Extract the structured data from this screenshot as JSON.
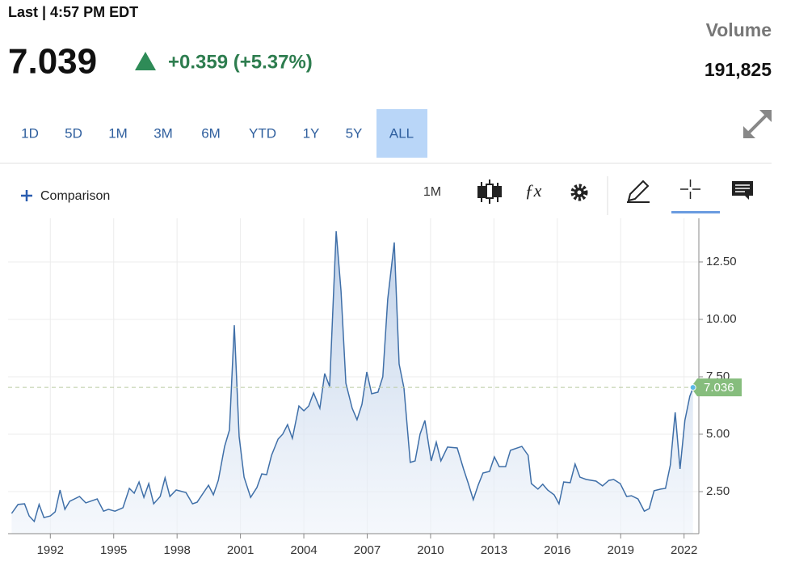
{
  "header": {
    "last_label": "Last | 4:57 PM EDT",
    "price": "7.039",
    "change": "+0.359 (+5.37%)",
    "volume_label": "Volume",
    "volume": "191,825"
  },
  "ranges": [
    "1D",
    "5D",
    "1M",
    "3M",
    "6M",
    "YTD",
    "1Y",
    "5Y",
    "ALL"
  ],
  "active_range": "ALL",
  "toolbar": {
    "comparison": "Comparison",
    "interval": "1M"
  },
  "chart_data": {
    "type": "area",
    "color": "#3f6fa8",
    "x": [
      1990.17,
      1990.47,
      1990.78,
      1991.0,
      1991.24,
      1991.47,
      1991.7,
      1992.0,
      1992.23,
      1992.46,
      1992.69,
      1992.92,
      1993.38,
      1993.68,
      1994.22,
      1994.52,
      1994.75,
      1995.06,
      1995.44,
      1995.74,
      1995.97,
      1996.2,
      1996.43,
      1996.66,
      1996.89,
      1997.2,
      1997.43,
      1997.66,
      1997.96,
      1998.42,
      1998.73,
      1998.95,
      1999.49,
      1999.72,
      1999.95,
      2000.25,
      2000.48,
      2000.71,
      2000.94,
      2001.17,
      2001.48,
      2001.78,
      2002.01,
      2002.24,
      2002.47,
      2002.78,
      2003.0,
      2003.23,
      2003.46,
      2003.77,
      2004.0,
      2004.23,
      2004.46,
      2004.76,
      2004.99,
      2005.22,
      2005.53,
      2005.76,
      2005.99,
      2006.29,
      2006.52,
      2006.75,
      2006.98,
      2007.21,
      2007.51,
      2007.74,
      2007.97,
      2008.28,
      2008.51,
      2008.74,
      2009.04,
      2009.27,
      2009.5,
      2009.73,
      2010.03,
      2010.27,
      2010.49,
      2010.8,
      2011.26,
      2011.56,
      2011.79,
      2012.02,
      2012.25,
      2012.48,
      2012.79,
      2013.02,
      2013.25,
      2013.55,
      2013.78,
      2014.32,
      2014.62,
      2014.77,
      2015.08,
      2015.31,
      2015.54,
      2015.85,
      2016.08,
      2016.3,
      2016.61,
      2016.84,
      2017.07,
      2017.37,
      2017.83,
      2018.14,
      2018.44,
      2018.67,
      2018.98,
      2019.28,
      2019.51,
      2019.82,
      2020.12,
      2020.35,
      2020.58,
      2020.89,
      2021.12,
      2021.35,
      2021.58,
      2021.81,
      2022.04,
      2022.27,
      2022.42
    ],
    "values": [
      1.55,
      1.94,
      1.97,
      1.44,
      1.2,
      1.94,
      1.37,
      1.44,
      1.62,
      2.57,
      1.73,
      2.08,
      2.29,
      2.01,
      2.18,
      1.65,
      1.73,
      1.65,
      1.8,
      2.64,
      2.43,
      2.92,
      2.25,
      2.85,
      1.97,
      2.29,
      3.1,
      2.29,
      2.57,
      2.46,
      1.97,
      2.04,
      2.78,
      2.36,
      2.99,
      4.47,
      5.18,
      9.75,
      4.89,
      3.13,
      2.25,
      2.68,
      3.27,
      3.24,
      4.08,
      4.79,
      5.0,
      5.42,
      4.82,
      6.23,
      6.02,
      6.23,
      6.8,
      6.13,
      7.64,
      7.08,
      13.84,
      11.23,
      7.22,
      6.13,
      5.63,
      6.3,
      7.71,
      6.76,
      6.83,
      7.5,
      10.88,
      13.35,
      8.06,
      7.01,
      3.77,
      3.84,
      5.0,
      5.6,
      3.84,
      4.65,
      3.84,
      4.44,
      4.4,
      3.49,
      2.85,
      2.15,
      2.78,
      3.31,
      3.38,
      4.01,
      3.59,
      3.59,
      4.3,
      4.47,
      4.08,
      2.85,
      2.61,
      2.82,
      2.57,
      2.36,
      1.97,
      2.92,
      2.89,
      3.7,
      3.13,
      3.03,
      2.96,
      2.75,
      2.99,
      3.03,
      2.85,
      2.29,
      2.32,
      2.18,
      1.65,
      1.76,
      2.54,
      2.61,
      2.64,
      3.66,
      5.95,
      3.49,
      5.6,
      6.65,
      7.01
    ],
    "xlim": [
      1990,
      2022.7
    ],
    "ylim": [
      0.67,
      14.4
    ],
    "xticks": [
      1992,
      1995,
      1998,
      2001,
      2004,
      2007,
      2010,
      2013,
      2016,
      2019,
      2022
    ],
    "yticks": [
      {
        "value": 2.5,
        "label": "2.50"
      },
      {
        "value": 5,
        "label": "5.00"
      },
      {
        "value": 7.5,
        "label": "7.50"
      },
      {
        "value": 10,
        "label": "10.00"
      },
      {
        "value": 12.5,
        "label": "12.50"
      }
    ],
    "last_value": 7.036,
    "grid": true
  }
}
